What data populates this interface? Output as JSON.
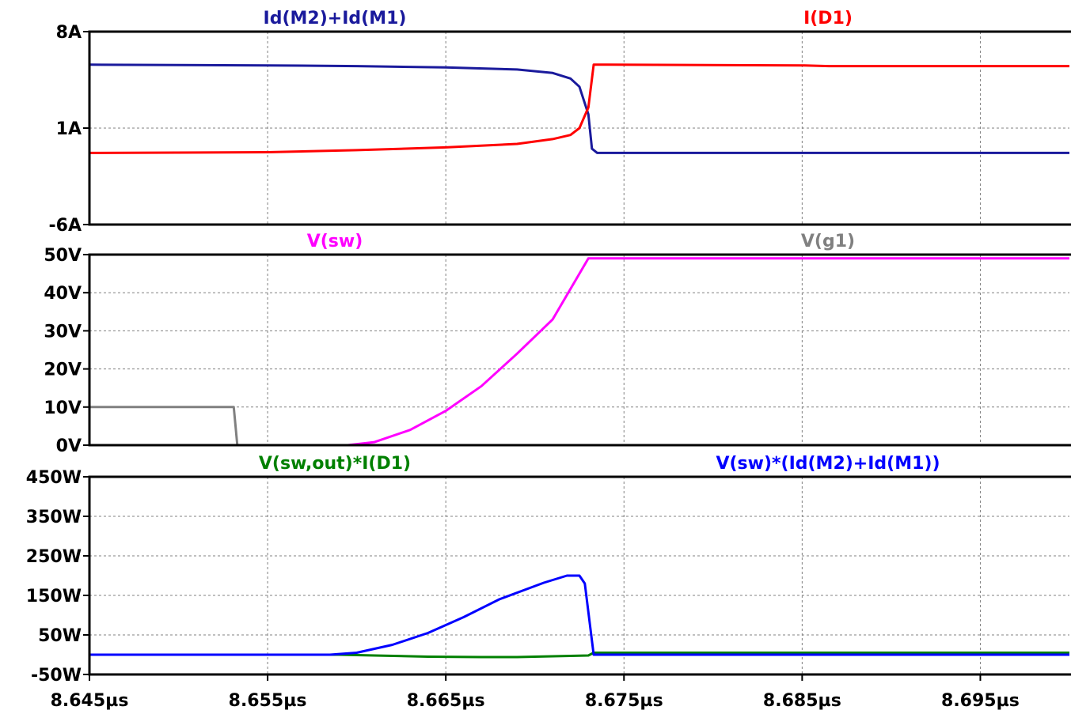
{
  "chart_data": [
    {
      "type": "line",
      "x_unit": "µs",
      "xlim": [
        8.645,
        8.7
      ],
      "ylim": [
        -6,
        8
      ],
      "ytick_values": [
        8,
        1,
        -6
      ],
      "ytick_labels": [
        "8A",
        "1A",
        "-6A"
      ],
      "series": [
        {
          "name": "Id(M2)+Id(M1)",
          "color": "#1a1a9c",
          "x": [
            8.645,
            8.655,
            8.66,
            8.665,
            8.669,
            8.671,
            8.672,
            8.6725,
            8.673,
            8.6732,
            8.6735,
            8.674,
            8.685,
            8.7
          ],
          "y": [
            5.6,
            5.55,
            5.5,
            5.4,
            5.25,
            5.0,
            4.6,
            4.0,
            2.0,
            -0.5,
            -0.8,
            -0.8,
            -0.8,
            -0.8
          ]
        },
        {
          "name": "I(D1)",
          "color": "#ff0000",
          "x": [
            8.645,
            8.655,
            8.66,
            8.665,
            8.669,
            8.671,
            8.672,
            8.6725,
            8.673,
            8.6733,
            8.674,
            8.685,
            8.6865,
            8.7
          ],
          "y": [
            -0.8,
            -0.75,
            -0.6,
            -0.4,
            -0.15,
            0.2,
            0.5,
            1.0,
            2.5,
            5.6,
            5.6,
            5.55,
            5.5,
            5.5
          ]
        }
      ]
    },
    {
      "type": "line",
      "x_unit": "µs",
      "xlim": [
        8.645,
        8.7
      ],
      "ylim": [
        0,
        50
      ],
      "ytick_values": [
        50,
        40,
        30,
        20,
        10,
        0
      ],
      "ytick_labels": [
        "50V",
        "40V",
        "30V",
        "20V",
        "10V",
        "0V"
      ],
      "series": [
        {
          "name": "V(sw)",
          "color": "#ff00ff",
          "x": [
            8.645,
            8.6595,
            8.661,
            8.663,
            8.665,
            8.667,
            8.669,
            8.671,
            8.673,
            8.7
          ],
          "y": [
            0,
            0,
            0.8,
            4,
            9,
            15.5,
            24,
            33,
            49,
            49
          ]
        },
        {
          "name": "V(g1)",
          "color": "#808080",
          "x": [
            8.645,
            8.6531,
            8.6533,
            8.7
          ],
          "y": [
            10,
            10,
            0,
            0
          ]
        }
      ]
    },
    {
      "type": "line",
      "x_unit": "µs",
      "xlim": [
        8.645,
        8.7
      ],
      "ylim": [
        -50,
        450
      ],
      "ytick_values": [
        450,
        350,
        250,
        150,
        50,
        -50
      ],
      "ytick_labels": [
        "450W",
        "350W",
        "250W",
        "150W",
        "50W",
        "-50W"
      ],
      "xtick_values": [
        8.645,
        8.655,
        8.665,
        8.675,
        8.685,
        8.695
      ],
      "xtick_labels": [
        "8.645µs",
        "8.655µs",
        "8.665µs",
        "8.675µs",
        "8.685µs",
        "8.695µs"
      ],
      "series": [
        {
          "name": "V(sw,out)*I(D1)",
          "color": "#008000",
          "x": [
            8.645,
            8.659,
            8.661,
            8.664,
            8.667,
            8.669,
            8.671,
            8.673,
            8.6733,
            8.685,
            8.7
          ],
          "y": [
            0,
            0,
            -2,
            -5,
            -6,
            -6,
            -4,
            -2,
            5,
            5,
            5
          ]
        },
        {
          "name": "V(sw)*(Id(M2)+Id(M1))",
          "color": "#0000ff",
          "x": [
            8.645,
            8.6585,
            8.66,
            8.662,
            8.664,
            8.666,
            8.668,
            8.6705,
            8.6718,
            8.6725,
            8.6728,
            8.6733,
            8.674,
            8.7
          ],
          "y": [
            0,
            0,
            5,
            25,
            55,
            95,
            140,
            182,
            200,
            200,
            180,
            0,
            0,
            0
          ]
        }
      ]
    }
  ]
}
